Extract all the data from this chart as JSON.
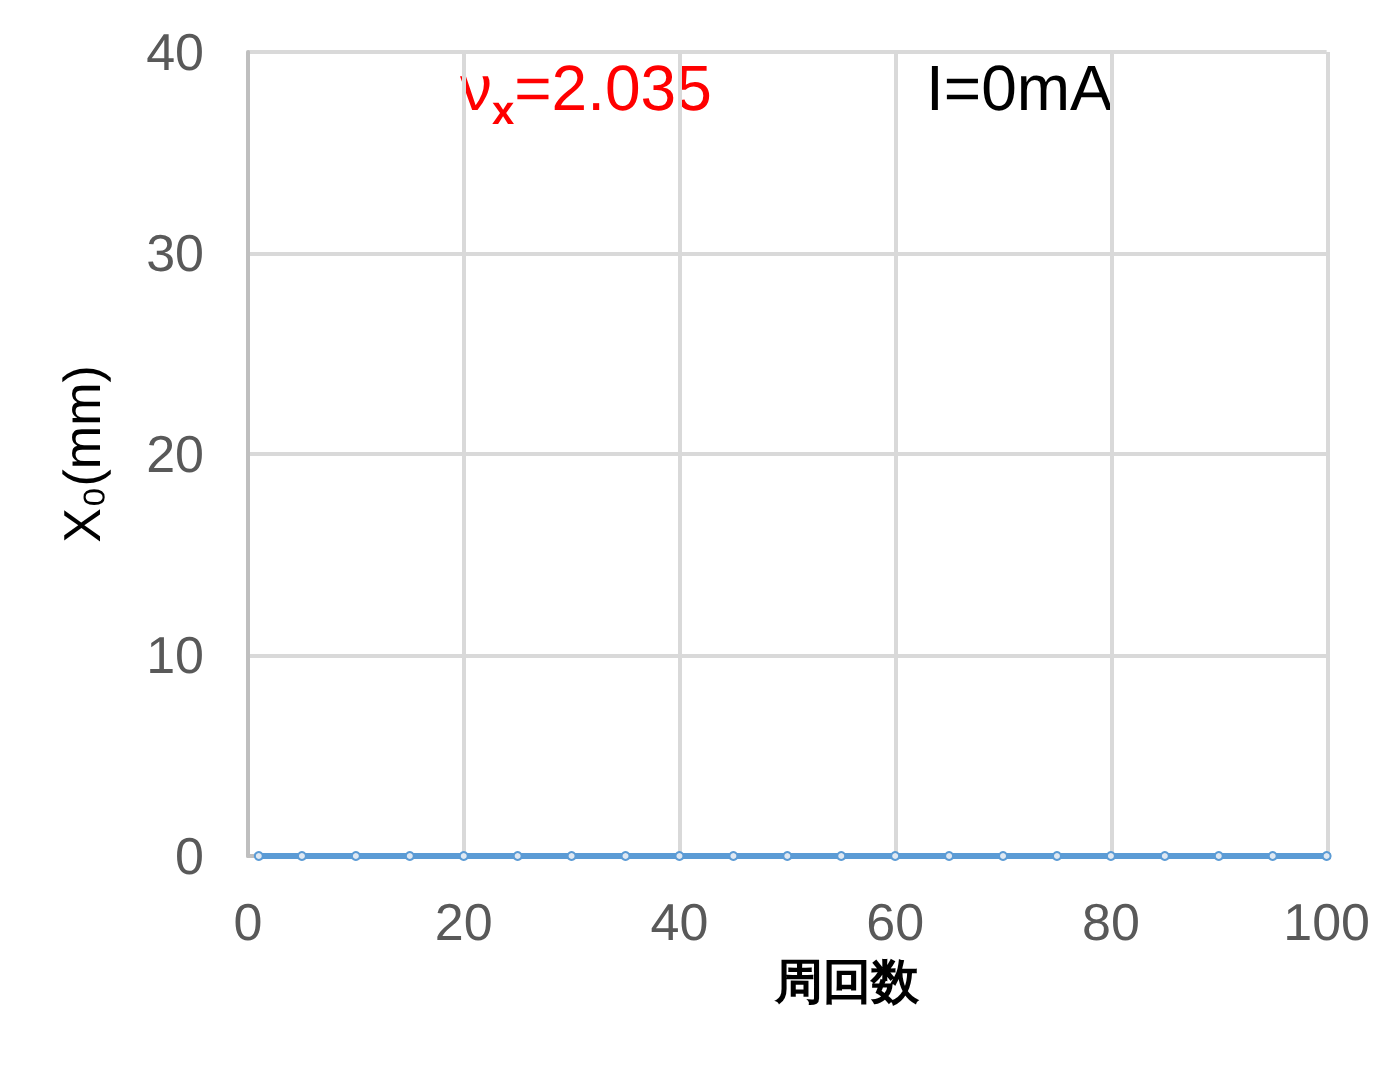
{
  "chart_data": {
    "type": "line",
    "xlabel": "周回数",
    "ylabel": "X₀(mm)",
    "annotations": [
      "ν$_{x}$=2.035",
      "I=0mA"
    ],
    "x": [
      1,
      5,
      10,
      15,
      20,
      25,
      30,
      35,
      40,
      45,
      50,
      55,
      60,
      65,
      70,
      75,
      80,
      85,
      90,
      95,
      100
    ],
    "series": [
      {
        "color": "#5b9bd5",
        "values": [
          0,
          0,
          0,
          0,
          0,
          0,
          0,
          0,
          0,
          0,
          0,
          0,
          0,
          0,
          0,
          0,
          0,
          0,
          0,
          0,
          0
        ]
      }
    ],
    "xlim": [
      0,
      100
    ],
    "xticks": [
      0,
      20,
      40,
      60,
      80,
      100
    ],
    "ylim": [
      0,
      40
    ],
    "yticks": [
      0,
      10,
      20,
      30,
      40
    ],
    "grid": true,
    "marker": "circle",
    "line_style": "solid"
  }
}
